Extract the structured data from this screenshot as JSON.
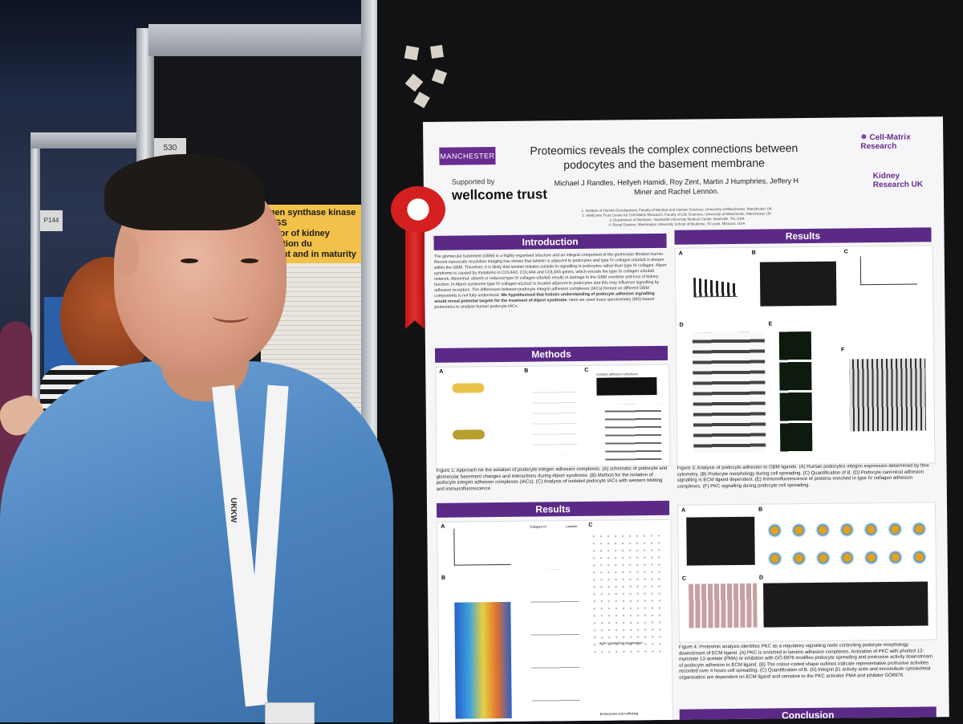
{
  "scene": {
    "left_poster": {
      "number": "P144",
      "board_tag": "530",
      "title_lines": [
        "ogen synthase kinase 3 (GS",
        "ulator of kidney function du",
        "pment and in maturity"
      ]
    },
    "poster": {
      "logos": {
        "manchester": "MANCHESTER",
        "supported_by": "Supported by",
        "wellcome": "wellcome trust",
        "cell_matrix": "Cell-Matrix Research",
        "kidney_research": "Kidney Research UK"
      },
      "title": "Proteomics reveals the complex connections between podocytes and the basement membrane",
      "authors": "Michael J Randles, Hellyeh Hamidi, Roy Zent, Martin J Humphries, Jeffery H Miner and Rachel Lennon.",
      "affiliations": [
        "1. Institute of Human Development, Faculty of Medical and Human Sciences, University of Manchester, Manchester UK",
        "2. Wellcome Trust Centre for Cell-Matrix Research, Faculty of Life Sciences, University of Manchester, Manchester UK",
        "3. Department of Medicine, Vanderbilt University Medical Center, Nashville, TN, USA",
        "4. Renal Division, Washington University School of Medicine, St Louis, Missouri, USA"
      ],
      "sections": {
        "introduction": "Introduction",
        "methods": "Methods",
        "results_left": "Results",
        "results_right": "Results",
        "conclusion": "Conclusion"
      },
      "intro_text": "The glomerular basement (GBM) is a highly organised structure and an integral component of the glomerular filtration barrier. Recent nanoscale resolution imaging has shown that laminin is adjacent to podocytes and type IV collagen α3α4α5 is deeper within the GBM. Therefore, it is likely that laminin initiates outside-in signalling in podocytes rather than type IV collagen. Alport syndrome is caused by mutations in COL4A3, COL4A4 and COL4A5 genes, which encode the type IV collagen α3α4α5 network. Abnormal, absent or reduced type IV collagen α3α4α5 results in damage to the GBM overtime and loss of kidney function. In Alport syndrome type IV collagen α1α1α2 is located adjacent to podocytes and this may influence signalling by adhesion receptors. The differences between podocyte integrin adhesion complexes (IACs) formed on different GBM components is not fully understood.",
      "intro_bold": "We hypothesised that holistic understanding of podocyte adhesion signalling would reveal potential targets for the treatment of Alport syndrome.",
      "intro_end": "Here we used mass spectrometry (MS)-based proteomics to analyse human podocyte IACs.",
      "fig1_caption": "Figure 1: Approach for the isolation of podocyte integrin adhesion complexes. (A) schematic of podocyte and glomerular basement changes and interactions during Alport syndrome. (B) Method for the isolation of podocyte integrin adhesion complexes (IACs). (C) Analysis of isolated podocyte IACs with western blotting and immunofluorescence.",
      "fig3_caption": "Figure 3: Analysis of podocyte adhesion to GBM ligands. (A) Human podocytes integrin expression determined by flow cytometry. (B) Podocyte morphology during cell spreading. (C) Quantification of B. (D) Podocyte canonical adhesion signalling is ECM ligand dependent. (E) Immunofluorescence of proteins enriched in type IV collagen adhesion complexes. (F) PKC signalling during podocyte cell spreading.",
      "fig4_caption": "Figure 4: Proteomic analysis identifies PKC as a regulatory signalling node controlling podocyte morphology downstream of ECM ligand. (A) PKC is enriched in laminin adhesion complexes. Activation of PKC with phorbol 12-myristate 13-acetate (PMA) or inhibition with GÖ 6976 modifies podocyte spreading and protrusive activity downstream of podocyte adhesion to ECM ligand. (B) The colour-coded shape outlines indicate representative protrusive activities recorded over 4 hours cell spreading. (C) Quantification of B. (D) Integrin β1 activity actin and microtubule cytoskeletal organisation are dependent on ECM ligand and sensitive to the PKC activator PMA and inhibitor GÖ6976.",
      "panel_labels": [
        "A",
        "B",
        "C",
        "D",
        "E",
        "F"
      ],
      "methods_labels": [
        "Isolated adhesion complexes"
      ],
      "results_left_labels": [
        "Collagen IV",
        "Laminin",
        "Actin cytoskeletal organisation",
        "Endocytosis and trafficking"
      ]
    },
    "lanyard": {
      "text": "UKKW"
    }
  },
  "colors": {
    "poster_purple": "#5b2a86",
    "shirt_blue": "#4e86c2",
    "ribbon_red": "#c01818",
    "board_black": "#121214"
  }
}
